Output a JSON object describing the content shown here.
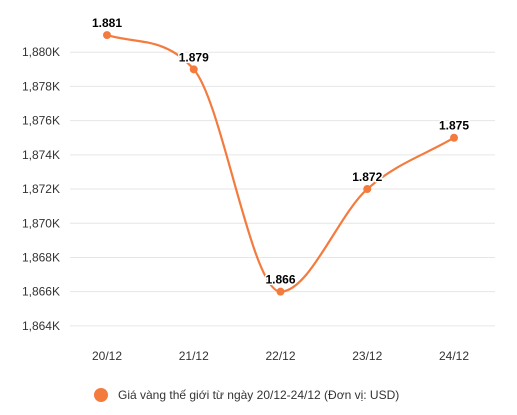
{
  "chart_data": {
    "type": "line",
    "categories": [
      "20/12",
      "21/12",
      "22/12",
      "23/12",
      "24/12"
    ],
    "series": [
      {
        "name": "Giá vàng thế giới từ ngày 20/12-24/12 (Đơn vị: USD)",
        "values": [
          1881,
          1879,
          1866,
          1872,
          1875
        ],
        "data_labels": [
          "1.881",
          "1.879",
          "1.866",
          "1.872",
          "1.875"
        ],
        "color": "#f47b3e"
      }
    ],
    "ylim": [
      1863,
      1882
    ],
    "y_ticks": [
      1864,
      1866,
      1868,
      1870,
      1872,
      1874,
      1876,
      1878,
      1880
    ],
    "y_tick_labels": [
      "1,864K",
      "1,866K",
      "1,868K",
      "1,870K",
      "1,872K",
      "1,874K",
      "1,876K",
      "1,878K",
      "1,880K"
    ],
    "grid": "horizontal",
    "legend_position": "bottom-center",
    "curve": "smooth",
    "title": "",
    "xlabel": "",
    "ylabel": ""
  },
  "colors": {
    "series": "#f47b3e",
    "grid": "#e6e6e6",
    "axis_text": "#333333",
    "label_text": "#000000"
  }
}
